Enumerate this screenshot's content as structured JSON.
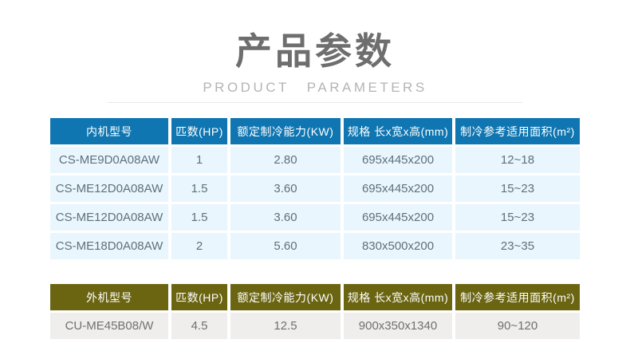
{
  "page": {
    "title": "产品参数",
    "subtitle": "PRODUCT PARAMETERS"
  },
  "colors": {
    "indoor_header_bg": "#0f76b2",
    "indoor_row_bg": "#e9f6fd",
    "indoor_text": "#5f707c",
    "outdoor_header_bg": "#6b6512",
    "outdoor_row_bg": "#efeeec",
    "outdoor_text": "#70706c",
    "header_text": "#ffffff"
  },
  "indoor_table": {
    "header_bg": "#0f76b2",
    "row_bg": "#e9f6fd",
    "text_color": "#5f707c",
    "columns": [
      "内机型号",
      "匹数(HP)",
      "额定制冷能力(KW)",
      "规格 长x宽x高(mm)",
      "制冷参考适用面积(m²)"
    ],
    "rows": [
      [
        "CS-ME9D0A08AW",
        "1",
        "2.80",
        "695x445x200",
        "12~18"
      ],
      [
        "CS-ME12D0A08AW",
        "1.5",
        "3.60",
        "695x445x200",
        "15~23"
      ],
      [
        "CS-ME12D0A08AW",
        "1.5",
        "3.60",
        "695x445x200",
        "15~23"
      ],
      [
        "CS-ME18D0A08AW",
        "2",
        "5.60",
        "830x500x200",
        "23~35"
      ]
    ]
  },
  "outdoor_table": {
    "header_bg": "#6b6512",
    "row_bg": "#efeeec",
    "text_color": "#70706c",
    "columns": [
      "外机型号",
      "匹数(HP)",
      "额定制冷能力(KW)",
      "规格 长x宽x高(mm)",
      "制冷参考适用面积(m²)"
    ],
    "rows": [
      [
        "CU-ME45B08/W",
        "4.5",
        "12.5",
        "900x350x1340",
        "90~120"
      ]
    ]
  }
}
